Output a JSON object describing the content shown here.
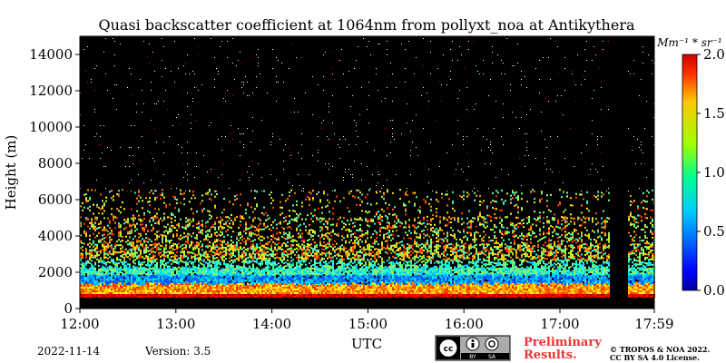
{
  "chart_data": {
    "type": "heatmap",
    "title": "Quasi backscatter coefficient at 1064nm from pollyxt_noa at Antikythera",
    "xlabel": "UTC",
    "ylabel": "Height (m)",
    "x_range_hours": [
      12.0,
      17.983
    ],
    "xticks": [
      {
        "v": 12.0,
        "label": "12:00"
      },
      {
        "v": 13.0,
        "label": "13:00"
      },
      {
        "v": 14.0,
        "label": "14:00"
      },
      {
        "v": 15.0,
        "label": "15:00"
      },
      {
        "v": 16.0,
        "label": "16:00"
      },
      {
        "v": 17.0,
        "label": "17:00"
      },
      {
        "v": 17.983,
        "label": "17:59"
      }
    ],
    "ylim": [
      0,
      15000
    ],
    "yticks": [
      0,
      2000,
      4000,
      6000,
      8000,
      10000,
      12000,
      14000
    ],
    "colorbar": {
      "unit_label": "Mm⁻¹ * sr⁻¹",
      "range": [
        0.0,
        2.0
      ],
      "ticks": [
        {
          "v": 0.0,
          "label": "0.0"
        },
        {
          "v": 0.5,
          "label": "0.5"
        },
        {
          "v": 1.0,
          "label": "1.0"
        },
        {
          "v": 1.5,
          "label": "1.5"
        },
        {
          "v": 2.0,
          "label": "2.0"
        }
      ],
      "colormap": "jet"
    },
    "background_color": "#000000",
    "no_data_interval_hours": [
      17.52,
      17.7
    ]
  },
  "footer": {
    "date": "2022-11-14",
    "version": "Version: 3.5",
    "preliminary_line1": "Preliminary",
    "preliminary_line2": "Results.",
    "copyright_line1": "© TROPOS & NOA 2022.",
    "copyright_line2": "CC BY SA 4.0 License.",
    "license_badge": {
      "by": "BY",
      "sa": "SA"
    }
  }
}
